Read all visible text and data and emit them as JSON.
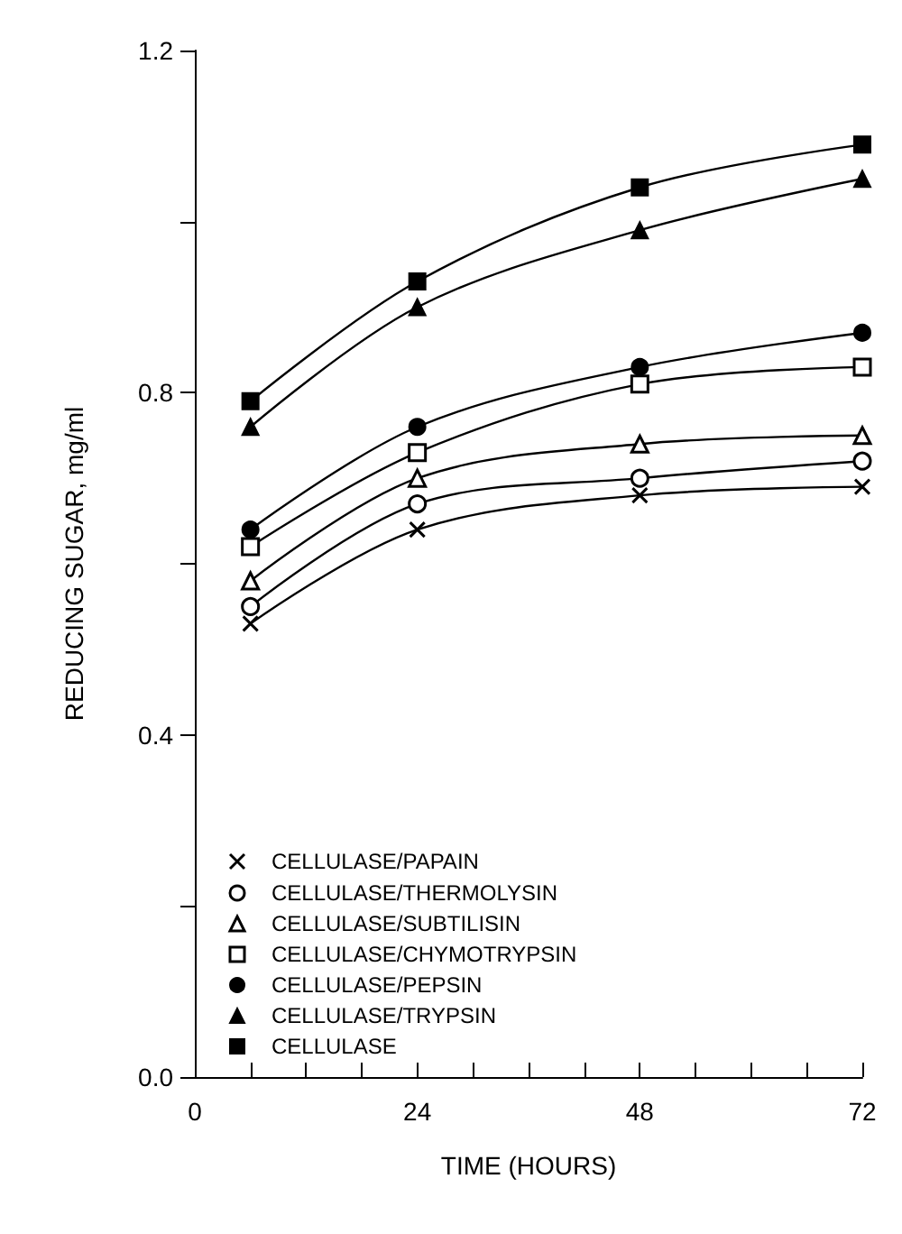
{
  "chart_data": {
    "type": "line",
    "xlabel": "TIME (HOURS)",
    "ylabel": "REDUCING SUGAR, mg/ml",
    "x": [
      6,
      24,
      48,
      72
    ],
    "xlim": [
      0,
      72
    ],
    "xticks": [
      0,
      {
        "value": 6,
        "label": null
      },
      {
        "value": 12,
        "label": null
      },
      {
        "value": 18,
        "label": null
      },
      24,
      {
        "value": 30,
        "label": null
      },
      {
        "value": 36,
        "label": null
      },
      {
        "value": 42,
        "label": null
      },
      48,
      {
        "value": 54,
        "label": null
      },
      {
        "value": 60,
        "label": null
      },
      {
        "value": 66,
        "label": null
      },
      72
    ],
    "ylim": [
      0,
      1.2
    ],
    "yticks": [
      {
        "value": 0,
        "label": "0.0"
      },
      {
        "value": 0.2,
        "label": null
      },
      {
        "value": 0.4,
        "label": "0.4"
      },
      {
        "value": 0.6,
        "label": null
      },
      {
        "value": 0.8,
        "label": "0.8"
      },
      {
        "value": 1.0,
        "label": null
      },
      {
        "value": 1.2,
        "label": "1.2"
      }
    ],
    "grid": false,
    "legend": "bottom left",
    "line_style": "solid",
    "series": [
      {
        "name": "CELLULASE/PAPAIN",
        "color": "#000000",
        "marker": "cross",
        "values": [
          0.53,
          0.64,
          0.68,
          0.69
        ]
      },
      {
        "name": "CELLULASE/THERMOLYSIN",
        "color": "#000000",
        "marker": "circle",
        "values": [
          0.55,
          0.67,
          0.7,
          0.72
        ]
      },
      {
        "name": "CELLULASE/SUBTILISIN",
        "color": "#000000",
        "marker": "triangle",
        "values": [
          0.58,
          0.7,
          0.74,
          0.75
        ]
      },
      {
        "name": "CELLULASE/CHYMOTRYPSIN",
        "color": "#000000",
        "marker": "square",
        "values": [
          0.62,
          0.73,
          0.81,
          0.83
        ]
      },
      {
        "name": "CELLULASE/PEPSIN",
        "color": "#000000",
        "marker": "circle",
        "values": [
          0.64,
          0.76,
          0.83,
          0.87
        ]
      },
      {
        "name": "CELLULASE/TRYPSIN",
        "color": "#000000",
        "marker": "triangle",
        "values": [
          0.76,
          0.9,
          0.99,
          1.05
        ]
      },
      {
        "name": "CELLULASE",
        "color": "#000000",
        "marker": "square",
        "values": [
          0.79,
          0.93,
          1.04,
          1.09
        ]
      }
    ]
  }
}
